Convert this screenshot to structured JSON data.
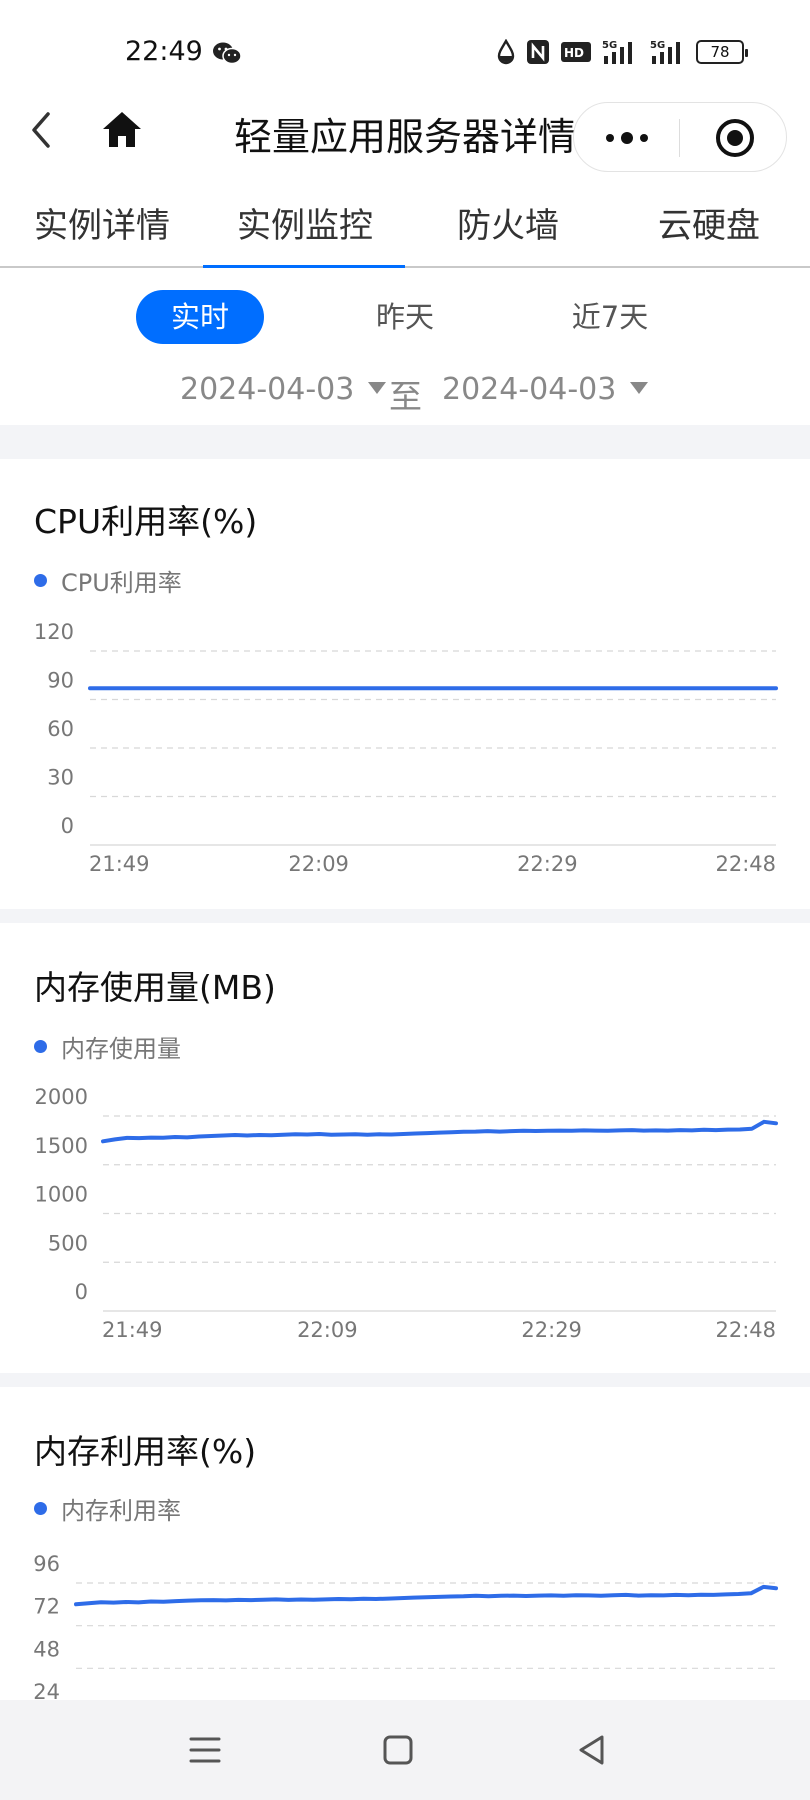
{
  "status_bar": {
    "time": "22:49",
    "battery": "78",
    "icons": [
      "wechat-icon",
      "water-drop-icon",
      "nfc-icon",
      "hd-icon",
      "signal-5g-icon",
      "signal-5g-icon",
      "battery-icon"
    ]
  },
  "title_bar": {
    "title": "轻量应用服务器详情",
    "icons": [
      "back-icon",
      "home-icon",
      "more-icon",
      "close-mini-program-icon"
    ]
  },
  "tabs": [
    {
      "label": "实例详情",
      "active": false
    },
    {
      "label": "实例监控",
      "active": true
    },
    {
      "label": "防火墙",
      "active": false
    },
    {
      "label": "云硬盘",
      "active": false
    }
  ],
  "range": {
    "options": [
      "实时",
      "昨天",
      "近7天"
    ],
    "selected": "实时",
    "date_from": "2024-04-03",
    "separator": "至",
    "date_to": "2024-04-03"
  },
  "colors": {
    "accent": "#006eff",
    "series": "#2e6ce8"
  },
  "chart_data": [
    {
      "type": "line",
      "title": "CPU利用率(%)",
      "legend": "CPU利用率",
      "y_ticks": [
        "120",
        "90",
        "60",
        "30",
        "0"
      ],
      "ylim": [
        0,
        120
      ],
      "x_ticks": [
        "21:49",
        "22:09",
        "22:29",
        "22:48"
      ],
      "series": [
        {
          "name": "CPU利用率",
          "values": [
            97,
            97,
            97,
            97,
            97,
            97,
            97,
            97,
            97,
            97,
            97,
            97,
            97,
            97,
            97,
            97,
            97,
            97,
            97,
            97
          ]
        }
      ]
    },
    {
      "type": "line",
      "title": "内存使用量(MB)",
      "legend": "内存使用量",
      "y_ticks": [
        "2000",
        "1500",
        "1000",
        "500",
        "0"
      ],
      "ylim": [
        0,
        2000
      ],
      "x_ticks": [
        "21:49",
        "22:09",
        "22:29",
        "22:48"
      ],
      "series": [
        {
          "name": "内存使用量",
          "values": [
            1740,
            1760,
            1775,
            1773,
            1778,
            1776,
            1785,
            1780,
            1790,
            1795,
            1800,
            1805,
            1800,
            1805,
            1802,
            1808,
            1812,
            1810,
            1815,
            1808,
            1810,
            1812,
            1808,
            1812,
            1810,
            1815,
            1820,
            1825,
            1830,
            1834,
            1838,
            1840,
            1845,
            1840,
            1845,
            1848,
            1846,
            1848,
            1850,
            1848,
            1852,
            1850,
            1848,
            1852,
            1855,
            1850,
            1852,
            1850,
            1855,
            1852,
            1858,
            1855,
            1860,
            1862,
            1870,
            1940,
            1925
          ]
        }
      ]
    },
    {
      "type": "line",
      "title": "内存利用率(%)",
      "legend": "内存利用率",
      "y_ticks": [
        "96",
        "72",
        "48",
        "24"
      ],
      "ylim": [
        24,
        96
      ],
      "x_ticks": [],
      "series": [
        {
          "name": "内存利用率",
          "values": [
            84,
            84.6,
            85.2,
            85,
            85.3,
            85.1,
            85.6,
            85.4,
            85.8,
            86.1,
            86.3,
            86.4,
            86.2,
            86.5,
            86.4,
            86.6,
            86.8,
            86.5,
            86.7,
            86.6,
            86.8,
            87,
            86.9,
            87.1,
            87,
            87.2,
            87.5,
            87.8,
            88,
            88.2,
            88.4,
            88.5,
            88.8,
            88.5,
            88.8,
            88.9,
            88.7,
            88.9,
            89,
            88.8,
            89.1,
            89,
            88.8,
            89.1,
            89.3,
            88.9,
            89.1,
            89,
            89.3,
            89.1,
            89.4,
            89.3,
            89.6,
            89.8,
            90.2,
            93.8,
            93
          ]
        }
      ]
    }
  ]
}
